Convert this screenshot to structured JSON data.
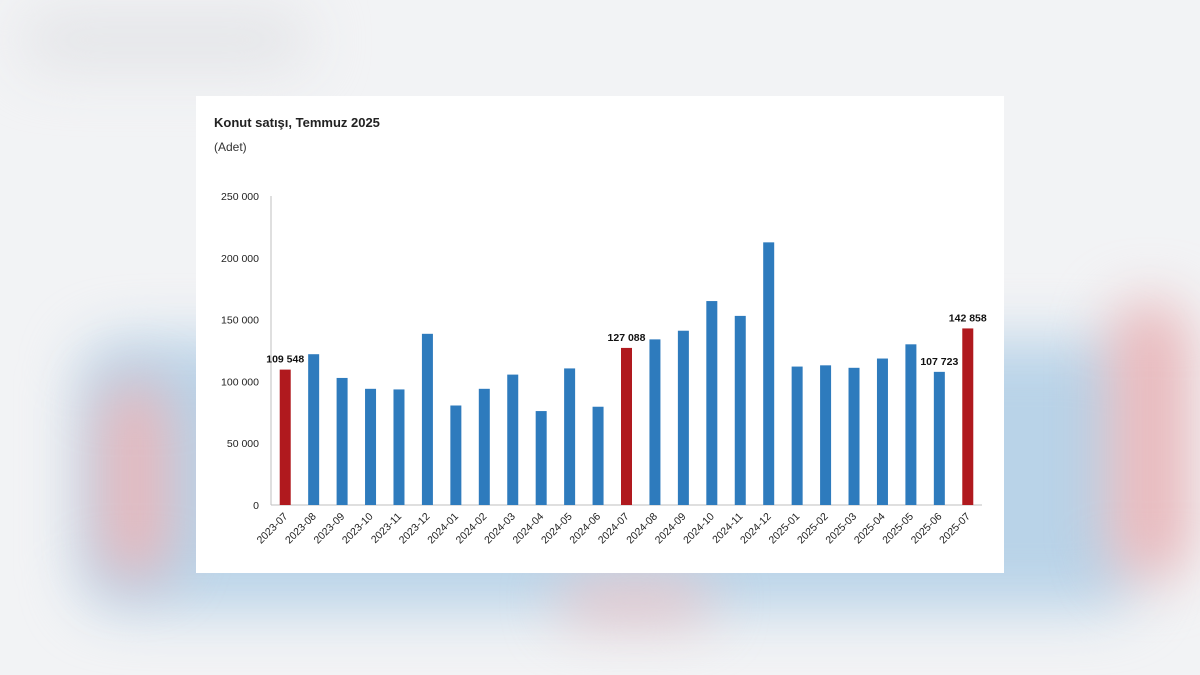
{
  "colors": {
    "bar_default": "#2e7bbd",
    "bar_highlight": "#b0191e",
    "axis": "#bfbfbf"
  },
  "chart_data": {
    "type": "bar",
    "title": "Konut satışı, Temmuz 2025",
    "subtitle": "(Adet)",
    "xlabel": "",
    "ylabel": "",
    "ylim": [
      0,
      250000
    ],
    "yticks": [
      0,
      50000,
      100000,
      150000,
      200000,
      250000
    ],
    "ytick_labels": [
      "0",
      "50 000",
      "100 000",
      "150 000",
      "200 000",
      "250 000"
    ],
    "grid": false,
    "categories": [
      "2023-07",
      "2023-08",
      "2023-09",
      "2023-10",
      "2023-11",
      "2023-12",
      "2024-01",
      "2024-02",
      "2024-03",
      "2024-04",
      "2024-05",
      "2024-06",
      "2024-07",
      "2024-08",
      "2024-09",
      "2024-10",
      "2024-11",
      "2024-12",
      "2025-01",
      "2025-02",
      "2025-03",
      "2025-04",
      "2025-05",
      "2025-06",
      "2025-07"
    ],
    "values": [
      109548,
      122000,
      102800,
      94000,
      93500,
      138500,
      80500,
      94000,
      105500,
      76000,
      110500,
      79500,
      127088,
      134000,
      141000,
      165000,
      153000,
      212500,
      112000,
      113000,
      111000,
      118500,
      130000,
      107723,
      142858
    ],
    "highlighted": [
      "2023-07",
      "2024-07",
      "2025-07"
    ],
    "data_labels": [
      {
        "category": "2023-07",
        "text": "109 548"
      },
      {
        "category": "2024-07",
        "text": "127 088"
      },
      {
        "category": "2025-06",
        "text": "107 723"
      },
      {
        "category": "2025-07",
        "text": "142 858"
      }
    ]
  }
}
